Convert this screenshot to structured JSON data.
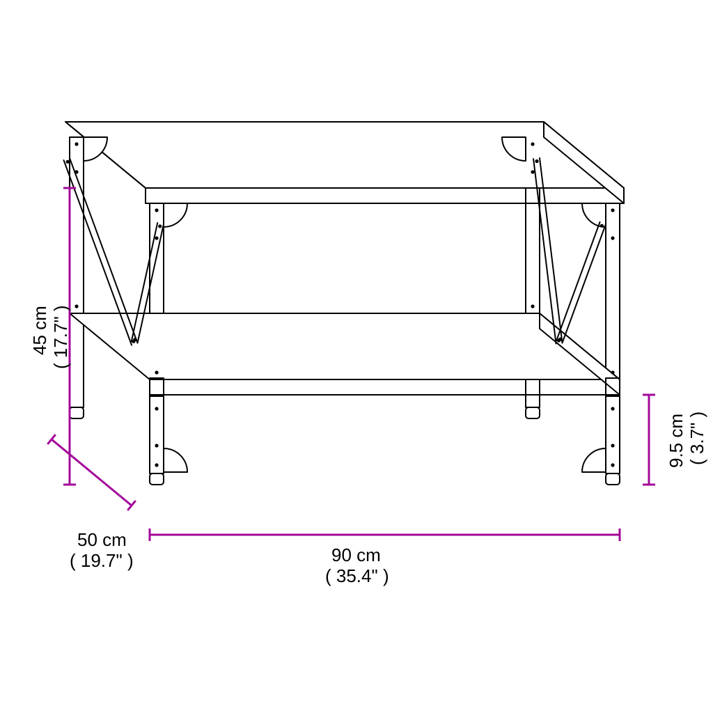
{
  "diagram": {
    "type": "dimensioned-line-drawing",
    "subject": "coffee-table",
    "background_color": "#ffffff",
    "line_color": "#000000",
    "line_width": 2,
    "dimension_color": "#a3089a",
    "dimension_line_width": 3,
    "cap_len": 18,
    "label_fontsize": 26,
    "dims": {
      "height": {
        "cm": "45 cm",
        "in": "( 17.7\" )"
      },
      "depth": {
        "cm": "50 cm",
        "in": "( 19.7\" )"
      },
      "width": {
        "cm": "90 cm",
        "in": "( 35.4\" )"
      },
      "shelf_clear": {
        "cm": "9.5 cm",
        "in": "( 3.7\" )"
      }
    }
  }
}
